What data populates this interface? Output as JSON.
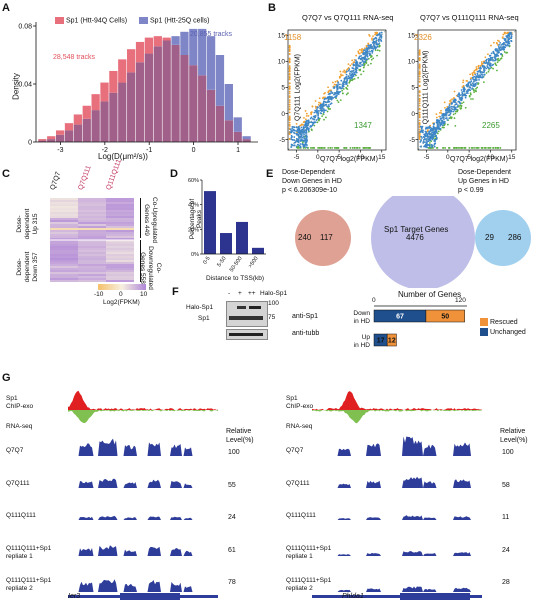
{
  "panels": {
    "A": "A",
    "B": "B",
    "C": "C",
    "D": "D",
    "E": "E",
    "F": "F",
    "G": "G"
  },
  "colors": {
    "red_hist": "#e8707c",
    "blue_hist": "#7f86c8",
    "overlap_hist": "#a0608a",
    "scatter_blue": "#3c86c8",
    "scatter_orange": "#f0a030",
    "scatter_green": "#5bb040",
    "bar_navy": "#2c3490",
    "venn_red": "#d99080",
    "venn_purple": "#a8a8e0",
    "venn_blue": "#90c8ec",
    "rescued": "#f0923a",
    "unchanged": "#1f4f8c",
    "chip_red": "#e02020",
    "chip_green": "#80c050",
    "track_blue": "#2e3c9a"
  },
  "A": {
    "legend": [
      "Sp1 (Htt-94Q Cells)",
      "Sp1 (Htt-25Q cells)"
    ],
    "ylabel": "Density",
    "xlabel": "Log(D(μm²/s))",
    "red_count": "28,548 tracks",
    "blue_count": "20,855 tracks"
  },
  "B": {
    "left_title": "Q7Q7 vs Q7Q111 RNA-seq",
    "right_title": "Q7Q7 vs Q111Q111 RNA-seq",
    "left_ylabel": "Q7Q111 Log2(FPKM)",
    "right_ylabel": "Q111Q111 Log2(FPKM)",
    "xlabel": "Q7Q7 log2(FPKM)",
    "left_up": "1158",
    "left_down": "1347",
    "right_up": "2326",
    "right_down": "2265"
  },
  "C": {
    "cols": [
      "Q7Q7",
      "Q7Q111",
      "Q111Q111"
    ],
    "left_top": [
      "Dose-dependent",
      "Up 315"
    ],
    "left_bot": [
      "Dose-dependent",
      "Down 357"
    ],
    "right_top": [
      "Co-Upregulated",
      "Genes 449"
    ],
    "right_bot": [
      "Co-Downregulated",
      "Genes 558"
    ],
    "scale_title": "Log2(FPKM)",
    "scale_ticks": [
      "-10",
      "0",
      "10"
    ]
  },
  "D": {
    "ylabel": "Percentage of Peaks",
    "xlabel": "Distance to TSS(kb)"
  },
  "E": {
    "left_title": [
      "Dose-Dependent",
      "Down Genes in HD",
      "p < 6.206309e-10"
    ],
    "right_title": [
      "Dose-Dependent",
      "Up Genes in HD",
      "p < 0.99"
    ],
    "center_label": "Sp1 Target Genes",
    "n_left_only": "240",
    "n_left_overlap": "117",
    "n_center": "4476",
    "n_right_overlap": "29",
    "n_right_only": "286"
  },
  "F": {
    "blot_header": [
      "-",
      "+",
      "++",
      "Halo-Sp1"
    ],
    "blot_left": [
      "Halo-Sp1",
      "Sp1"
    ],
    "blot_mw": [
      "100",
      "75"
    ],
    "blot_right": [
      "anti-Sp1",
      "anti-tubb"
    ],
    "genes_title": "Number of Genes",
    "genes_axis": [
      "0",
      "120"
    ],
    "row1": [
      "Down",
      "in HD"
    ],
    "row2": [
      "Up",
      "in HD"
    ],
    "down_unchanged": "67",
    "down_rescued": "50",
    "up_unchanged": "17",
    "up_rescued": "12",
    "legend": [
      "Rescued",
      "Unchanged"
    ]
  },
  "G": {
    "chip": [
      "Sp1",
      "ChIP-exo"
    ],
    "rnaseq": "RNA-seq",
    "rel": [
      "Relative",
      "Level(%)"
    ],
    "tracks": [
      "Q7Q7",
      "Q7Q111",
      "Q111Q111",
      "Q111Q111+Sp1",
      "Q111Q111+Sp1"
    ],
    "track_sub": [
      "",
      "",
      "",
      "repliate 1",
      "repliate 2"
    ],
    "left_values": [
      "100",
      "55",
      "24",
      "61",
      "78"
    ],
    "right_values": [
      "100",
      "58",
      "11",
      "24",
      "28"
    ],
    "left_gene": "Ier3",
    "right_gene": "Phlda1"
  },
  "chart_data": [
    {
      "type": "bar",
      "title": "",
      "xlabel": "Log(D(μm²/s))",
      "ylabel": "Density",
      "ylim": [
        0,
        0.08
      ],
      "yticks": [
        0,
        0.04,
        0.08
      ],
      "xticks": [
        -3,
        -2,
        -1,
        0,
        1
      ],
      "x": [
        -3.4,
        -3.2,
        -3.0,
        -2.8,
        -2.6,
        -2.4,
        -2.2,
        -2.0,
        -1.8,
        -1.6,
        -1.4,
        -1.2,
        -1.0,
        -0.8,
        -0.6,
        -0.4,
        -0.2,
        0.0,
        0.2,
        0.4,
        0.6,
        0.8,
        1.0,
        1.2
      ],
      "series": [
        {
          "name": "Sp1 (Htt-94Q Cells)",
          "values": [
            0.002,
            0.004,
            0.008,
            0.013,
            0.019,
            0.025,
            0.033,
            0.041,
            0.049,
            0.057,
            0.064,
            0.069,
            0.072,
            0.073,
            0.072,
            0.067,
            0.06,
            0.053,
            0.046,
            0.036,
            0.025,
            0.015,
            0.007,
            0.002
          ]
        },
        {
          "name": "Sp1 (Htt-25Q cells)",
          "values": [
            0.001,
            0.002,
            0.005,
            0.008,
            0.012,
            0.016,
            0.022,
            0.028,
            0.034,
            0.041,
            0.048,
            0.055,
            0.061,
            0.066,
            0.07,
            0.073,
            0.076,
            0.078,
            0.078,
            0.073,
            0.06,
            0.04,
            0.017,
            0.004
          ]
        }
      ]
    },
    {
      "type": "scatter",
      "title": "Q7Q7 vs Q7Q111 RNA-seq",
      "xlabel": "Q7Q7 log2(FPKM)",
      "ylabel": "Q7Q111 Log2(FPKM)",
      "xlim": [
        -7,
        16
      ],
      "ylim": [
        -7,
        16
      ],
      "xticks": [
        -5,
        0,
        5,
        10,
        15
      ],
      "yticks": [
        -5,
        0,
        5,
        10,
        15
      ],
      "counts": {
        "up": 1158,
        "down": 1347
      }
    },
    {
      "type": "scatter",
      "title": "Q7Q7 vs Q111Q111 RNA-seq",
      "xlabel": "Q7Q7 log2(FPKM)",
      "ylabel": "Q111Q111 Log2(FPKM)",
      "xlim": [
        -7,
        16
      ],
      "ylim": [
        -7,
        16
      ],
      "xticks": [
        -5,
        0,
        5,
        10,
        15
      ],
      "yticks": [
        -5,
        0,
        5,
        10,
        15
      ],
      "counts": {
        "up": 2326,
        "down": 2265
      }
    },
    {
      "type": "bar",
      "title": "",
      "xlabel": "Distance to TSS(kb)",
      "ylabel": "Percentage of Peaks",
      "categories": [
        "0-5",
        "5-50",
        "50-500",
        ">500"
      ],
      "values": [
        51,
        17,
        26,
        5
      ],
      "ylim": [
        0,
        60
      ],
      "yticks": [
        "0%",
        "20%",
        "40%",
        "60%"
      ],
      "ytick_values": [
        0,
        20,
        40,
        60
      ]
    },
    {
      "type": "bar",
      "title": "Number of Genes",
      "xlim": [
        0,
        120
      ],
      "categories": [
        "Down in HD",
        "Up in HD"
      ],
      "series": [
        {
          "name": "Unchanged",
          "values": [
            67,
            17
          ]
        },
        {
          "name": "Rescued",
          "values": [
            50,
            12
          ]
        }
      ]
    }
  ]
}
